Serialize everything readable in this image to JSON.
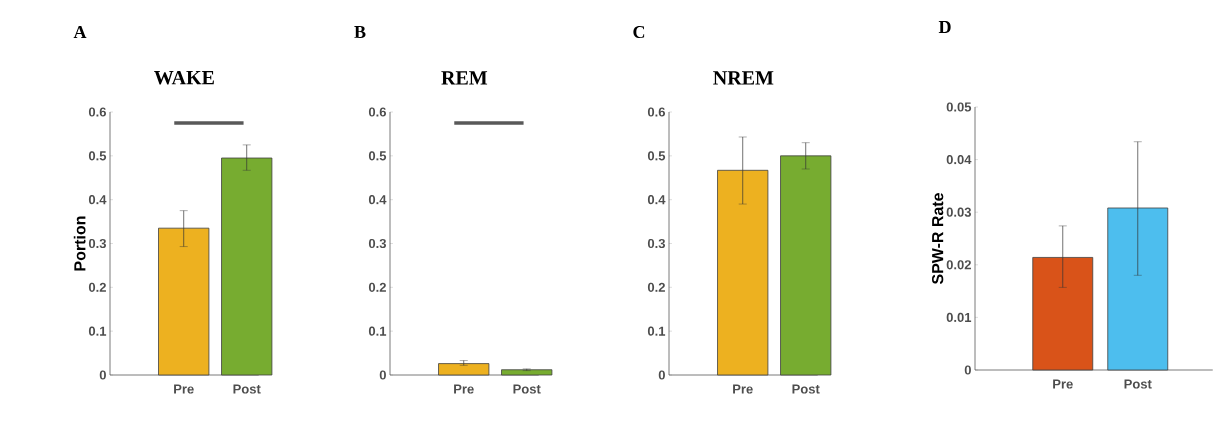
{
  "chart_data": [
    {
      "type": "bar",
      "title": "WAKE",
      "ylabel": "Portion",
      "annotations": [
        "A"
      ],
      "categories": [
        "Pre",
        "Post"
      ],
      "values": [
        0.335,
        0.495
      ],
      "colors": [
        "#edb120",
        "#77ac30"
      ],
      "errors": [
        [
          0.293,
          0.375
        ],
        [
          0.467,
          0.525
        ]
      ],
      "ylim": [
        0,
        0.6
      ],
      "yticks": [
        0,
        0.1,
        0.2,
        0.3,
        0.4,
        0.5,
        0.6
      ],
      "ref_lines": [
        {
          "axis": "y",
          "value": 0.575,
          "color": "#595959"
        }
      ]
    },
    {
      "type": "bar",
      "title": "REM",
      "annotations": [
        "B"
      ],
      "categories": [
        "Pre",
        "Post"
      ],
      "values": [
        0.026,
        0.012
      ],
      "colors": [
        "#edb120",
        "#77ac30"
      ],
      "errors": [
        [
          0.022,
          0.033
        ],
        [
          0.01,
          0.014
        ]
      ],
      "ylim": [
        0,
        0.6
      ],
      "yticks": [
        0,
        0.1,
        0.2,
        0.3,
        0.4,
        0.5,
        0.6
      ],
      "ref_lines": [
        {
          "axis": "y",
          "value": 0.575,
          "color": "#595959"
        }
      ]
    },
    {
      "type": "bar",
      "title": "NREM",
      "annotations": [
        "C"
      ],
      "categories": [
        "Pre",
        "Post"
      ],
      "values": [
        0.467,
        0.5
      ],
      "colors": [
        "#edb120",
        "#77ac30"
      ],
      "errors": [
        [
          0.39,
          0.543
        ],
        [
          0.47,
          0.53
        ]
      ],
      "ylim": [
        0,
        0.6
      ],
      "yticks": [
        0,
        0.1,
        0.2,
        0.3,
        0.4,
        0.5,
        0.6
      ]
    },
    {
      "type": "bar",
      "ylabel": "SPW-R Rate",
      "annotations": [
        "D"
      ],
      "categories": [
        "Pre",
        "Post"
      ],
      "values": [
        0.0214,
        0.0308
      ],
      "colors": [
        "#d95319",
        "#4dbeee"
      ],
      "errors": [
        [
          0.0157,
          0.0274
        ],
        [
          0.018,
          0.0434
        ]
      ],
      "ylim": [
        0,
        0.05
      ],
      "yticks": [
        0,
        0.01,
        0.02,
        0.03,
        0.04,
        0.05
      ]
    }
  ]
}
